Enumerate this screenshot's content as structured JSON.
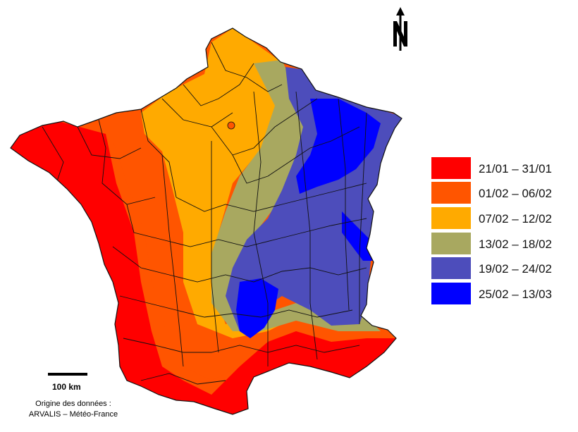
{
  "legend": {
    "items": [
      {
        "label": "21/01 – 31/01",
        "color": "#ff0000"
      },
      {
        "label": "01/02 – 06/02",
        "color": "#ff5500"
      },
      {
        "label": "07/02 – 12/02",
        "color": "#ffaa00"
      },
      {
        "label": "13/02 – 18/02",
        "color": "#a8a860"
      },
      {
        "label": "19/02 – 24/02",
        "color": "#4d4dbb"
      },
      {
        "label": "25/02 – 13/03",
        "color": "#0000ff"
      }
    ]
  },
  "scale": {
    "label": "100 km"
  },
  "source": {
    "line1": "Origine des données :",
    "line2": "ARVALIS – Météo-France"
  },
  "compass": {
    "icon": "north-arrow-icon"
  }
}
